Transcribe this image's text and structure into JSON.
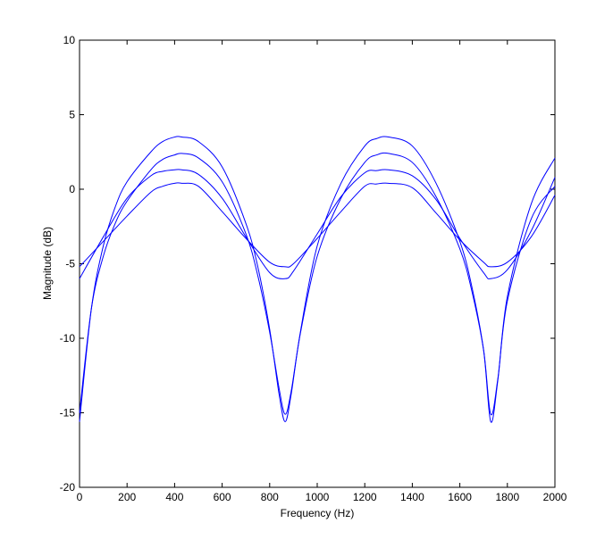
{
  "chart_data": {
    "type": "line",
    "title": "",
    "xlabel": "Frequency (Hz)",
    "ylabel": "Magnitude (dB)",
    "xlim": [
      0,
      2000
    ],
    "ylim": [
      -20,
      10
    ],
    "x_ticks": [
      0,
      200,
      400,
      600,
      800,
      1000,
      1200,
      1400,
      1600,
      1800,
      2000
    ],
    "y_ticks": [
      -20,
      -15,
      -10,
      -5,
      0,
      5,
      10
    ],
    "grid": false,
    "legend": "none",
    "line_color": "#0000ff",
    "series": [
      {
        "x": [
          0,
          100,
          200,
          300,
          350,
          400,
          430,
          500,
          600,
          700,
          800,
          865,
          900,
          1000,
          1100,
          1200,
          1250,
          1300,
          1400,
          1500,
          1600,
          1700,
          1730,
          1800,
          1900,
          2000
        ],
        "values": [
          -5.2,
          -3.5,
          -1.8,
          -0.2,
          0.2,
          0.4,
          0.4,
          0.2,
          -1.5,
          -3.3,
          -4.9,
          -5.2,
          -5.0,
          -3.3,
          -1.5,
          0.2,
          0.35,
          0.4,
          0.1,
          -1.6,
          -3.4,
          -4.9,
          -5.2,
          -4.9,
          -3.2,
          -0.4
        ]
      },
      {
        "x": [
          0,
          100,
          200,
          300,
          350,
          400,
          430,
          500,
          600,
          700,
          800,
          865,
          900,
          1000,
          1100,
          1200,
          1250,
          1300,
          1400,
          1500,
          1600,
          1700,
          1730,
          1800,
          1900,
          2000
        ],
        "values": [
          -6.0,
          -3.2,
          -0.6,
          0.9,
          1.2,
          1.3,
          1.3,
          1.0,
          -0.6,
          -3.2,
          -5.6,
          -6.0,
          -5.5,
          -3.0,
          -0.5,
          1.1,
          1.25,
          1.3,
          0.9,
          -0.7,
          -3.3,
          -5.6,
          -6.0,
          -5.4,
          -2.8,
          0.8
        ]
      },
      {
        "x": [
          0,
          50,
          100,
          150,
          200,
          300,
          350,
          400,
          430,
          500,
          600,
          700,
          750,
          800,
          840,
          865,
          890,
          930,
          1000,
          1100,
          1200,
          1250,
          1300,
          1400,
          1500,
          1600,
          1650,
          1700,
          1730,
          1760,
          1800,
          1900,
          2000
        ],
        "values": [
          -15.0,
          -8.0,
          -4.5,
          -2.3,
          -0.8,
          1.3,
          2.0,
          2.3,
          2.4,
          2.1,
          0.5,
          -3.0,
          -5.8,
          -9.6,
          -13.4,
          -15.1,
          -13.6,
          -9.6,
          -4.5,
          -0.6,
          1.8,
          2.3,
          2.4,
          1.8,
          -0.5,
          -4.0,
          -6.8,
          -10.8,
          -15.1,
          -12.7,
          -7.5,
          -2.0,
          0.2
        ]
      },
      {
        "x": [
          0,
          50,
          100,
          150,
          200,
          300,
          350,
          400,
          430,
          500,
          600,
          700,
          750,
          800,
          840,
          865,
          890,
          930,
          1000,
          1100,
          1200,
          1250,
          1300,
          1400,
          1500,
          1600,
          1650,
          1700,
          1730,
          1760,
          1800,
          1900,
          2000
        ],
        "values": [
          -15.6,
          -8.0,
          -3.8,
          -1.2,
          0.5,
          2.5,
          3.2,
          3.5,
          3.5,
          3.2,
          1.5,
          -2.3,
          -5.2,
          -9.4,
          -13.8,
          -15.6,
          -13.8,
          -9.5,
          -3.8,
          0.4,
          2.9,
          3.4,
          3.5,
          2.9,
          0.4,
          -3.5,
          -6.5,
          -10.8,
          -15.6,
          -12.8,
          -7.2,
          -1.0,
          2.1
        ]
      }
    ]
  }
}
